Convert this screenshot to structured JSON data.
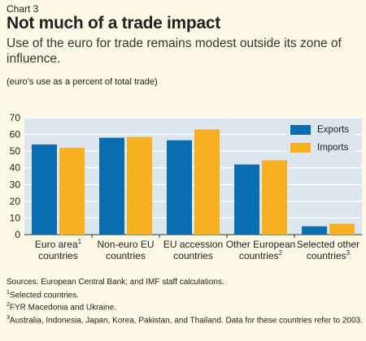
{
  "header": {
    "chart_label": "Chart 3",
    "title": "Not much of a trade impact",
    "subtitle": "Use of the euro for trade remains modest outside its zone of influence.",
    "unit_note": "(euro’s use as a percent of total trade)"
  },
  "colors": {
    "exports": "#0a6db0",
    "imports": "#f8b022",
    "plot_bg": "#dbe6ee",
    "grid": "#ffffff",
    "page_bg": "#fdf8e6"
  },
  "chart_data": {
    "type": "bar",
    "ylim": [
      0,
      70
    ],
    "yticks": [
      0,
      10,
      20,
      30,
      40,
      50,
      60,
      70
    ],
    "grid": true,
    "legend_position": "top-right",
    "categories": [
      {
        "line1": "Euro area",
        "sup1": "1",
        "line2": "countries",
        "sup2": ""
      },
      {
        "line1": "Non-euro EU",
        "sup1": "",
        "line2": "countries",
        "sup2": ""
      },
      {
        "line1": "EU accession",
        "sup1": "",
        "line2": "countries",
        "sup2": ""
      },
      {
        "line1": "Other European",
        "sup1": "",
        "line2": "countries",
        "sup2": "2"
      },
      {
        "line1": "Selected other",
        "sup1": "",
        "line2": "countries",
        "sup2": "3"
      }
    ],
    "series": [
      {
        "name": "Exports",
        "values": [
          54,
          58,
          56.5,
          42,
          5
        ]
      },
      {
        "name": "Imports",
        "values": [
          52,
          58.5,
          63,
          44.5,
          6.5
        ]
      }
    ]
  },
  "notes": {
    "sources": "Sources: European Central Bank; and IMF staff calculations.",
    "n1_mark": "1",
    "n1_text": "Selected countries.",
    "n2_mark": "2",
    "n2_text": "FYR Macedonia and Ukraine.",
    "n3_mark": "3",
    "n3_text": "Australia, Indonesia, Japan, Korea, Pakistan, and Thailand. Data for these countries refer to 2003."
  }
}
